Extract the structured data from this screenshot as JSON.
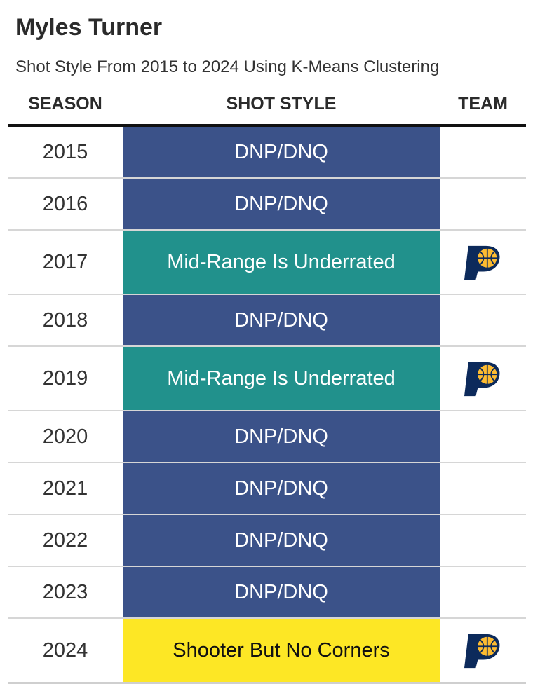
{
  "header": {
    "title": "Myles Turner",
    "subtitle": "Shot Style From 2015 to 2024 Using K-Means Clustering"
  },
  "columns": {
    "season": "SEASON",
    "style": "SHOT STYLE",
    "team": "TEAM"
  },
  "colors": {
    "dnp": "#3b5289",
    "midrange": "#21918c",
    "shooter": "#fde725",
    "dark_text": "#111111",
    "light_text": "#ffffff"
  },
  "chart_data": {
    "type": "table",
    "title": "Myles Turner",
    "subtitle": "Shot Style From 2015 to 2024 Using K-Means Clustering",
    "columns": [
      "SEASON",
      "SHOT STYLE",
      "TEAM"
    ],
    "rows": [
      {
        "season": "2015",
        "style": "DNP/DNQ",
        "category": "dnp",
        "team_logo": ""
      },
      {
        "season": "2016",
        "style": "DNP/DNQ",
        "category": "dnp",
        "team_logo": ""
      },
      {
        "season": "2017",
        "style": "Mid-Range Is Underrated",
        "category": "midrange",
        "team_logo": "pacers-logo-icon"
      },
      {
        "season": "2018",
        "style": "DNP/DNQ",
        "category": "dnp",
        "team_logo": ""
      },
      {
        "season": "2019",
        "style": "Mid-Range Is Underrated",
        "category": "midrange",
        "team_logo": "pacers-logo-icon"
      },
      {
        "season": "2020",
        "style": "DNP/DNQ",
        "category": "dnp",
        "team_logo": ""
      },
      {
        "season": "2021",
        "style": "DNP/DNQ",
        "category": "dnp",
        "team_logo": ""
      },
      {
        "season": "2022",
        "style": "DNP/DNQ",
        "category": "dnp",
        "team_logo": ""
      },
      {
        "season": "2023",
        "style": "DNP/DNQ",
        "category": "dnp",
        "team_logo": ""
      },
      {
        "season": "2024",
        "style": "Shooter But No Corners",
        "category": "shooter",
        "team_logo": "pacers-logo-icon"
      }
    ]
  }
}
